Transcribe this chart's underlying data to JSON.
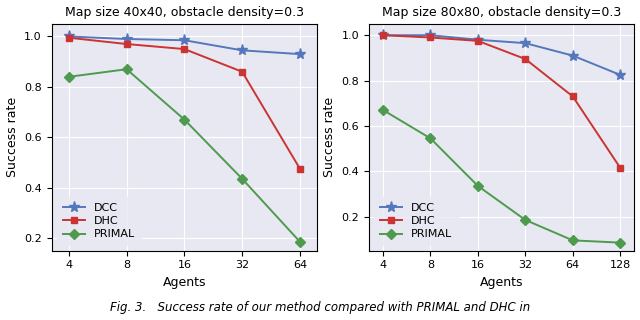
{
  "plot1": {
    "title": "Map size 40x40, obstacle density=0.3",
    "xlabel": "Agents",
    "ylabel": "Success rate",
    "x_ticks": [
      4,
      8,
      16,
      32,
      64
    ],
    "x_tick_labels": [
      "4",
      "8",
      "16",
      "32",
      "64"
    ],
    "series": {
      "DCC": {
        "y": [
          1.0,
          0.99,
          0.985,
          0.945,
          0.93
        ],
        "color": "#5577bb",
        "marker": "*"
      },
      "DHC": {
        "y": [
          0.995,
          0.97,
          0.95,
          0.86,
          0.475
        ],
        "color": "#cc3333",
        "marker": "s"
      },
      "PRIMAL": {
        "y": [
          0.84,
          0.87,
          0.67,
          0.435,
          0.185
        ],
        "color": "#4e9a4e",
        "marker": "D"
      }
    },
    "ylim": [
      0.15,
      1.05
    ],
    "yticks": [
      0.2,
      0.4,
      0.6,
      0.8,
      1.0
    ]
  },
  "plot2": {
    "title": "Map size 80x80, obstacle density=0.3",
    "xlabel": "Agents",
    "ylabel": "Success rate",
    "x_ticks": [
      4,
      8,
      16,
      32,
      64,
      128
    ],
    "x_tick_labels": [
      "4",
      "8",
      "16",
      "32",
      "64",
      "128"
    ],
    "series": {
      "DCC": {
        "y": [
          1.0,
          1.0,
          0.98,
          0.965,
          0.91,
          0.825
        ],
        "color": "#5577bb",
        "marker": "*"
      },
      "DHC": {
        "y": [
          1.0,
          0.99,
          0.975,
          0.895,
          0.73,
          0.415
        ],
        "color": "#cc3333",
        "marker": "s"
      },
      "PRIMAL": {
        "y": [
          0.67,
          0.545,
          0.335,
          0.185,
          0.095,
          0.085
        ],
        "color": "#4e9a4e",
        "marker": "D"
      }
    },
    "ylim": [
      0.05,
      1.05
    ],
    "yticks": [
      0.2,
      0.4,
      0.6,
      0.8,
      1.0
    ]
  },
  "legend_order": [
    "DCC",
    "DHC",
    "PRIMAL"
  ],
  "bg_color": "#e8e8f2",
  "fig_caption": "Fig. 3.   Success rate of our method compared with PRIMAL and DHC in"
}
